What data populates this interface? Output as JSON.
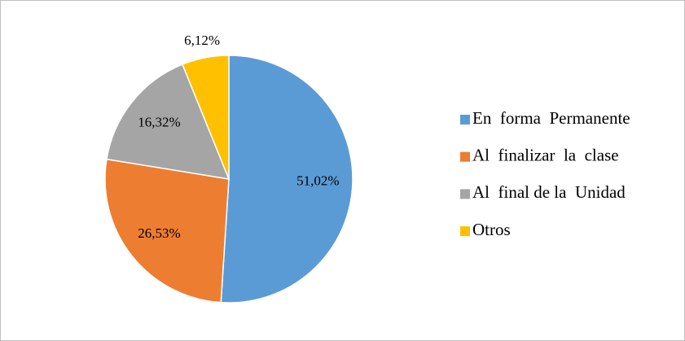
{
  "chart_data": {
    "type": "pie",
    "categories": [
      "En  forma  Permanente",
      "Al  finalizar  la  clase",
      "Al  final de la  Unidad",
      "Otros"
    ],
    "values": [
      51.02,
      26.53,
      16.32,
      6.12
    ],
    "value_labels": [
      "51,02%",
      "26,53%",
      "16,32%",
      "6,12%"
    ],
    "colors": [
      "#5b9bd5",
      "#ed7d31",
      "#a5a5a5",
      "#ffc000"
    ],
    "legend": "right"
  }
}
